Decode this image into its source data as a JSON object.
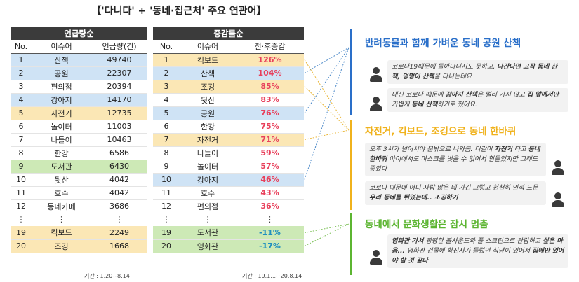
{
  "title": "【'다니다' + '동네·집근처' 주요 연관어】",
  "table1": {
    "header": "언급량순",
    "columns": [
      "No.",
      "이슈어",
      "언급량(건)"
    ],
    "rows": [
      {
        "no": "1",
        "word": "산책",
        "value": "49740",
        "hl": "blue"
      },
      {
        "no": "2",
        "word": "공원",
        "value": "22307",
        "hl": "blue"
      },
      {
        "no": "3",
        "word": "편의점",
        "value": "20394",
        "hl": ""
      },
      {
        "no": "4",
        "word": "강아지",
        "value": "14170",
        "hl": "blue"
      },
      {
        "no": "5",
        "word": "자전거",
        "value": "12735",
        "hl": "yellow"
      },
      {
        "no": "6",
        "word": "놀이터",
        "value": "11003",
        "hl": ""
      },
      {
        "no": "7",
        "word": "나들이",
        "value": "10463",
        "hl": ""
      },
      {
        "no": "8",
        "word": "한강",
        "value": "6586",
        "hl": ""
      },
      {
        "no": "9",
        "word": "도서관",
        "value": "6430",
        "hl": "green"
      },
      {
        "no": "10",
        "word": "뒷산",
        "value": "4042",
        "hl": ""
      },
      {
        "no": "11",
        "word": "호수",
        "value": "4042",
        "hl": ""
      },
      {
        "no": "12",
        "word": "동네카페",
        "value": "3686",
        "hl": ""
      }
    ],
    "dots": "⋮",
    "bottom_rows": [
      {
        "no": "19",
        "word": "킥보드",
        "value": "2249",
        "hl": "yellow"
      },
      {
        "no": "20",
        "word": "조깅",
        "value": "1668",
        "hl": "yellow"
      }
    ],
    "period": "기간 : 1.20~8.14"
  },
  "table2": {
    "header": "증감률순",
    "columns": [
      "No.",
      "이슈어",
      "전·후증감"
    ],
    "rows": [
      {
        "no": "1",
        "word": "킥보드",
        "value": "126%",
        "hl": "yellow"
      },
      {
        "no": "2",
        "word": "산책",
        "value": "104%",
        "hl": "blue"
      },
      {
        "no": "3",
        "word": "조깅",
        "value": "85%",
        "hl": "yellow"
      },
      {
        "no": "4",
        "word": "뒷산",
        "value": "83%",
        "hl": ""
      },
      {
        "no": "5",
        "word": "공원",
        "value": "76%",
        "hl": "blue"
      },
      {
        "no": "6",
        "word": "한강",
        "value": "75%",
        "hl": ""
      },
      {
        "no": "7",
        "word": "자전거",
        "value": "71%",
        "hl": "yellow"
      },
      {
        "no": "8",
        "word": "나들이",
        "value": "59%",
        "hl": ""
      },
      {
        "no": "9",
        "word": "놀이터",
        "value": "57%",
        "hl": ""
      },
      {
        "no": "10",
        "word": "강아지",
        "value": "46%",
        "hl": "blue"
      },
      {
        "no": "11",
        "word": "호수",
        "value": "43%",
        "hl": ""
      },
      {
        "no": "12",
        "word": "편의점",
        "value": "36%",
        "hl": ""
      }
    ],
    "dots": "⋮",
    "bottom_rows": [
      {
        "no": "19",
        "word": "도서관",
        "value": "-11%",
        "hl": "green"
      },
      {
        "no": "20",
        "word": "영화관",
        "value": "-17%",
        "hl": "green"
      }
    ],
    "period": "기간 : 19.1.1~20.8.14"
  },
  "colors": {
    "blue": "#2a6fc9",
    "yellow": "#f0b21c",
    "green": "#5cb531",
    "pct_up": "#e8405b",
    "pct_down": "#1f8fbf",
    "link_blue": "#4a88c8",
    "link_yellow": "#e9b73a",
    "link_green": "#7cc056"
  },
  "sections": [
    {
      "title": "반려동물과 함께 가벼운 동네 공원 산책",
      "quotes": [
        "코로나19때문에 돌아다니지도 못하고, 나간다면 고작 동네 산책, 멍멍이 산책을 다니는데요",
        "대신 코로나 때문에 강아지 산책은 멀리 가지 않고 집 앞에서만 가볍게 동네 산책하기로 했어요."
      ]
    },
    {
      "title": "자전거, 킥보드, 조깅으로 동네 한바퀴",
      "quotes": [
        "오후 3시가 넘어서야 문밖으로 나와봄. 디같이 자전거 타고 동네 한바퀴 아이에서도 마스크를 벗을 수 없어서 힘들었지만 그래도 좋았다",
        "코로나 때문에 어디 사람 많은 데 가긴 그렇고 천천히 인적 드문 우리 동네를 뛰었는데.. 조깅하기"
      ]
    },
    {
      "title": "동네에서 문화생활은 잠시 멈춤",
      "quotes": [
        "영화관 가서 빵빵한 볼사운드와 폴 스크린으로 관람하고 싶은 마음... 영화관 건물에 확진자가 들렀던 식당이 있어서 집에만 있어야 할 것 같다"
      ]
    }
  ]
}
